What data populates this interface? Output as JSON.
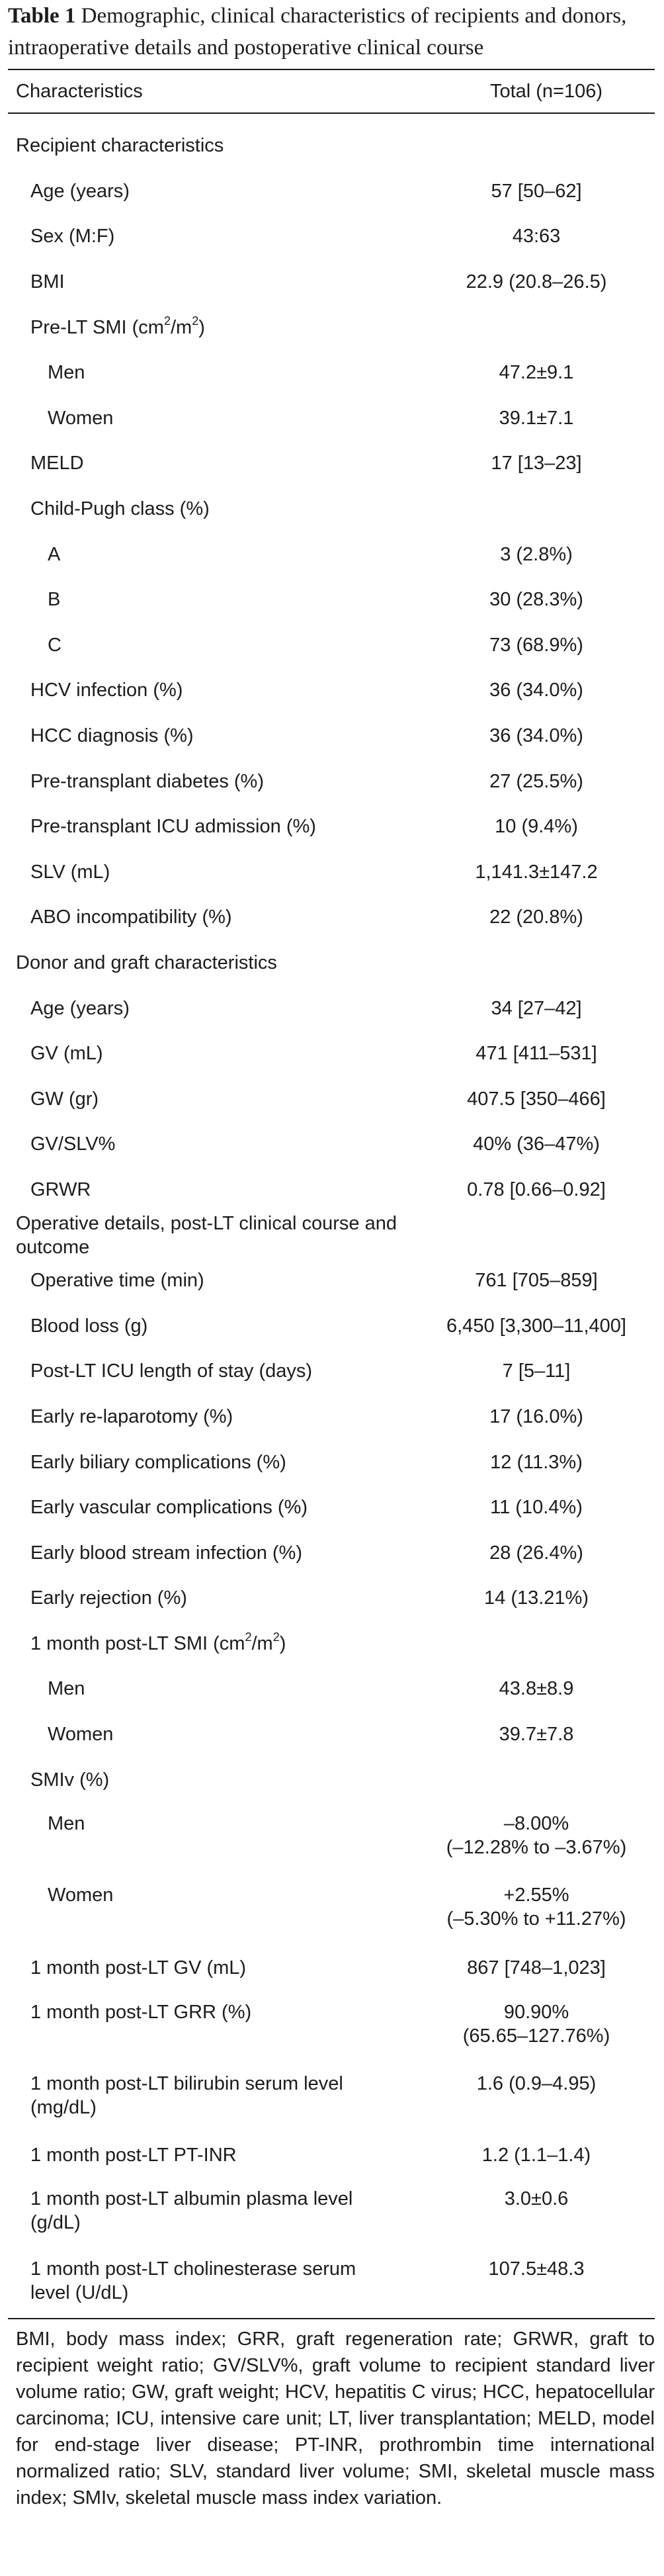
{
  "caption": {
    "label": "Table 1",
    "text": "Demographic, clinical characteristics of recipients and donors, intraoperative details and postoperative clinical course"
  },
  "header": {
    "col1": "Characteristics",
    "col2": "Total (n=106)"
  },
  "sections": {
    "recipient": "Recipient characteristics",
    "donor": "Donor and graft characteristics",
    "operative": "Operative details, post-LT clinical course and outcome"
  },
  "rows": {
    "age": {
      "label": "Age (years)",
      "value": "57 [50–62]"
    },
    "sex": {
      "label": "Sex (M:F)",
      "value": "43:63"
    },
    "bmi": {
      "label": "BMI",
      "value": "22.9 (20.8–26.5)"
    },
    "prelt_smi": {
      "label_pre": "Pre-LT SMI (cm",
      "sup1": "2",
      "label_mid": "/m",
      "sup2": "2",
      "label_post": ")"
    },
    "prelt_men": {
      "label": "Men",
      "value": "47.2±9.1"
    },
    "prelt_women": {
      "label": "Women",
      "value": "39.1±7.1"
    },
    "meld": {
      "label": "MELD",
      "value": "17 [13–23]"
    },
    "childpugh": {
      "label": "Child-Pugh class (%)"
    },
    "cp_a": {
      "label": "A",
      "value": "3 (2.8%)"
    },
    "cp_b": {
      "label": "B",
      "value": "30 (28.3%)"
    },
    "cp_c": {
      "label": "C",
      "value": "73 (68.9%)"
    },
    "hcv": {
      "label": "HCV infection (%)",
      "value": "36 (34.0%)"
    },
    "hcc": {
      "label": "HCC diagnosis (%)",
      "value": "36 (34.0%)"
    },
    "diabetes": {
      "label": "Pre-transplant diabetes (%)",
      "value": "27 (25.5%)"
    },
    "icu_adm": {
      "label": "Pre-transplant ICU admission (%)",
      "value": "10 (9.4%)"
    },
    "slv": {
      "label": "SLV (mL)",
      "value": "1,141.3±147.2"
    },
    "abo": {
      "label": "ABO incompatibility (%)",
      "value": "22 (20.8%)"
    },
    "d_age": {
      "label": "Age (years)",
      "value": "34 [27–42]"
    },
    "gv": {
      "label": "GV (mL)",
      "value": "471 [411–531]"
    },
    "gw": {
      "label": "GW (gr)",
      "value": "407.5 [350–466]"
    },
    "gvslv": {
      "label": "GV/SLV%",
      "value": "40% (36–47%)"
    },
    "grwr": {
      "label": "GRWR",
      "value": "0.78 [0.66–0.92]"
    },
    "optime": {
      "label": "Operative time (min)",
      "value": "761 [705–859]"
    },
    "bloodloss": {
      "label": "Blood loss (g)",
      "value": "6,450 [3,300–11,400]"
    },
    "icu_los": {
      "label": "Post-LT ICU length of stay (days)",
      "value": "7 [5–11]"
    },
    "relap": {
      "label": "Early re-laparotomy (%)",
      "value": "17 (16.0%)"
    },
    "biliary": {
      "label": "Early biliary complications (%)",
      "value": "12 (11.3%)"
    },
    "vascular": {
      "label": "Early vascular complications (%)",
      "value": "11 (10.4%)"
    },
    "bsi": {
      "label": "Early blood stream infection (%)",
      "value": "28 (26.4%)"
    },
    "rejection": {
      "label": "Early rejection (%)",
      "value": "14 (13.21%)"
    },
    "post_smi": {
      "label_pre": "1 month post-LT SMI (cm",
      "sup1": "2",
      "label_mid": "/m",
      "sup2": "2",
      "label_post": ")"
    },
    "post_men": {
      "label": "Men",
      "value": "43.8±8.9"
    },
    "post_women": {
      "label": "Women",
      "value": "39.7±7.8"
    },
    "smiv": {
      "label": "SMIv (%)"
    },
    "smiv_men": {
      "label": "Men",
      "value1": "–8.00%",
      "value2": "(–12.28% to –3.67%)"
    },
    "smiv_women": {
      "label": "Women",
      "value1": "+2.55%",
      "value2": "(–5.30% to +11.27%)"
    },
    "post_gv": {
      "label": "1 month post-LT GV (mL)",
      "value": "867 [748–1,023]"
    },
    "post_grr": {
      "label": "1 month post-LT GRR (%)",
      "value1": "90.90%",
      "value2": "(65.65–127.76%)"
    },
    "post_bili": {
      "label1": "1 month post-LT bilirubin serum level",
      "label2": "(mg/dL)",
      "value": "1.6 (0.9–4.95)"
    },
    "post_inr": {
      "label": "1 month post-LT PT-INR",
      "value": "1.2 (1.1–1.4)"
    },
    "post_alb": {
      "label1": "1 month post-LT albumin plasma level",
      "label2": "(g/dL)",
      "value": "3.0±0.6"
    },
    "post_che": {
      "label1": "1 month post-LT cholinesterase serum",
      "label2": "level (U/dL)",
      "value": "107.5±48.3"
    }
  },
  "footnote": "BMI, body mass index; GRR, graft regeneration rate; GRWR, graft to recipient weight ratio; GV/SLV%, graft volume to recipient standard liver volume ratio; GW, graft weight; HCV, hepatitis C virus; HCC, hepatocellular carcinoma; ICU, intensive care unit; LT, liver transplantation; MELD, model for end-stage liver disease; PT-INR, prothrombin time international normalized ratio; SLV, standard liver volume; SMI, skeletal muscle mass index; SMIv, skeletal muscle mass index variation."
}
